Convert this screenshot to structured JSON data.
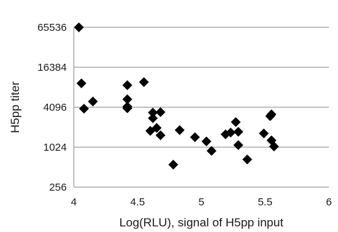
{
  "chart_data": {
    "type": "scatter",
    "title": "",
    "xlabel": "Log(RLU), signal of H5pp input",
    "ylabel": "H5pp titer",
    "xlim": [
      4,
      6
    ],
    "ylim": [
      256,
      65536
    ],
    "yscale": "log2",
    "xticks": [
      "4",
      "4.5",
      "5",
      "5.5",
      "6"
    ],
    "yticks": [
      "256",
      "1024",
      "4096",
      "16384",
      "65536"
    ],
    "grid": "horizontal",
    "marker": "diamond",
    "color": "#000000",
    "points": [
      [
        4.04,
        65536
      ],
      [
        4.06,
        9400
      ],
      [
        4.08,
        3900
      ],
      [
        4.15,
        5000
      ],
      [
        4.42,
        8800
      ],
      [
        4.42,
        5400
      ],
      [
        4.42,
        4200
      ],
      [
        4.42,
        3950
      ],
      [
        4.55,
        9800
      ],
      [
        4.6,
        1800
      ],
      [
        4.62,
        3400
      ],
      [
        4.62,
        2800
      ],
      [
        4.65,
        2000
      ],
      [
        4.68,
        3450
      ],
      [
        4.68,
        1550
      ],
      [
        4.78,
        560
      ],
      [
        4.83,
        1850
      ],
      [
        4.95,
        1450
      ],
      [
        5.04,
        1250
      ],
      [
        5.08,
        900
      ],
      [
        5.19,
        1600
      ],
      [
        5.23,
        1700
      ],
      [
        5.27,
        2450
      ],
      [
        5.29,
        1750
      ],
      [
        5.29,
        1100
      ],
      [
        5.36,
        670
      ],
      [
        5.49,
        1650
      ],
      [
        5.54,
        3000
      ],
      [
        5.55,
        3200
      ],
      [
        5.55,
        1300
      ],
      [
        5.57,
        1050
      ]
    ]
  }
}
